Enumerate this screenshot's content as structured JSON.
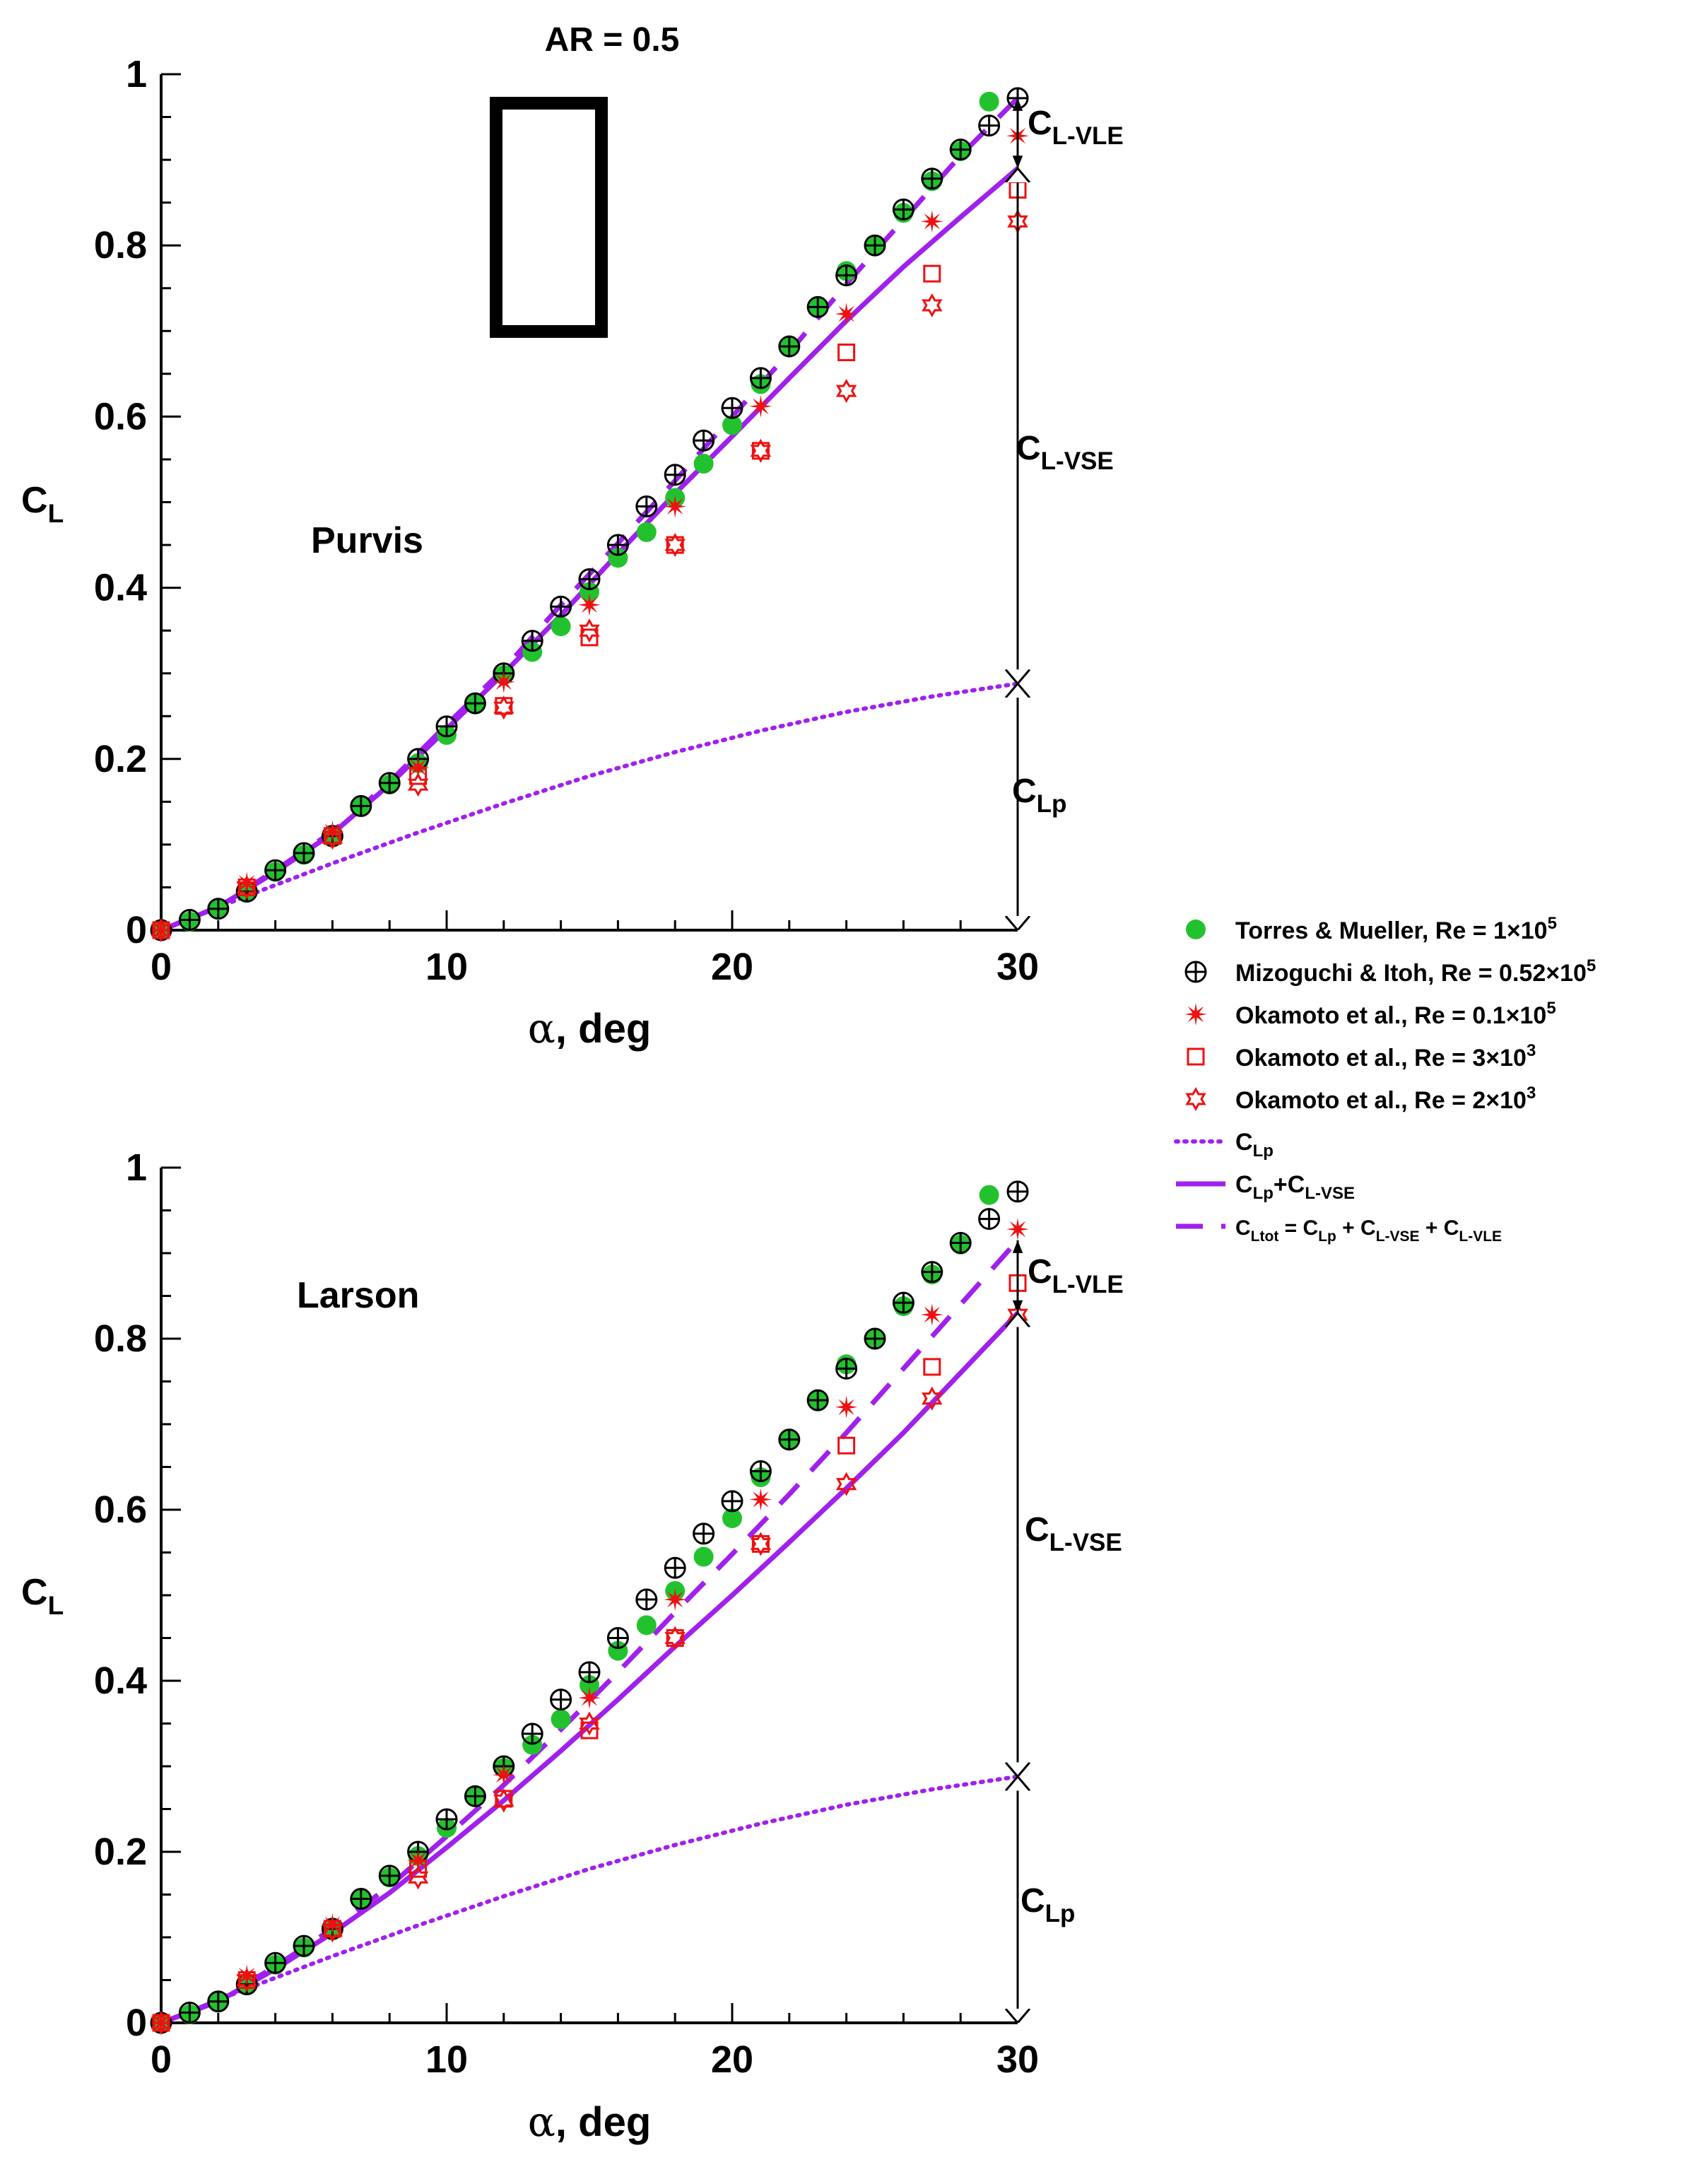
{
  "figure_title": "AR = 0.5",
  "colors": {
    "torres": "#22c22e",
    "okamoto": "#ee1111",
    "theory": "#a020ee",
    "axis": "#000000"
  },
  "legend": [
    {
      "key": "torres",
      "text": "Torres & Mueller, Re = 1×10",
      "sup": "5"
    },
    {
      "key": "mizo",
      "text": "Mizoguchi & Itoh, Re = 0.52×10",
      "sup": "5"
    },
    {
      "key": "oka1",
      "text": "Okamoto et al., Re = 0.1×10",
      "sup": "5"
    },
    {
      "key": "oka3",
      "text": "Okamoto et al., Re = 3×10",
      "sup": "3"
    },
    {
      "key": "oka2",
      "text": "Okamoto et al., Re = 2×10",
      "sup": "3"
    },
    {
      "key": "clp",
      "main": "C",
      "sub": "Lp"
    },
    {
      "key": "clpvse",
      "main": "C",
      "sub": "Lp",
      "mid": "+C",
      "sub2": "L-VSE"
    },
    {
      "key": "cltot",
      "main": "C",
      "sub": "Ltot",
      "rest": " = C",
      "sub2": "Lp",
      "rest2": " + C",
      "sub3": "L-VSE",
      "rest3": " + C",
      "sub4": "L-VLE"
    }
  ],
  "chart_data": [
    {
      "type": "scatter",
      "title": "Purvis",
      "xlabel": "α, deg",
      "ylabel": "C",
      "ylabel_sub": "L",
      "xlim": [
        0,
        30
      ],
      "ylim": [
        0,
        1
      ],
      "xticks": [
        0,
        10,
        20,
        30
      ],
      "yticks": [
        0,
        0.2,
        0.4,
        0.6,
        0.8,
        1
      ],
      "ytick_labels": [
        "0",
        "0.2",
        "0.4",
        "0.6",
        "0.8",
        "1"
      ],
      "series": [
        {
          "name": "Torres & Mueller, Re = 1×10^5",
          "key": "torres",
          "x": [
            0,
            1,
            2,
            3,
            4,
            5,
            6,
            7,
            8,
            9,
            10,
            11,
            12,
            13,
            14,
            15,
            16,
            17,
            18,
            19,
            20,
            21,
            22,
            23,
            24,
            25,
            26,
            27,
            28,
            29
          ],
          "y": [
            0,
            0.01,
            0.025,
            0.045,
            0.068,
            0.088,
            0.108,
            0.145,
            0.17,
            0.195,
            0.228,
            0.265,
            0.298,
            0.325,
            0.355,
            0.395,
            0.435,
            0.465,
            0.505,
            0.545,
            0.59,
            0.638,
            0.682,
            0.728,
            0.77,
            0.8,
            0.838,
            0.875,
            0.91,
            0.968
          ]
        },
        {
          "name": "Mizoguchi & Itoh, Re = 0.52×10^5",
          "key": "mizo",
          "x": [
            0,
            1,
            2,
            3,
            4,
            5,
            6,
            7,
            8,
            9,
            10,
            11,
            12,
            13,
            14,
            15,
            16,
            17,
            18,
            19,
            20,
            21,
            22,
            23,
            24,
            25,
            26,
            27,
            28,
            29,
            30
          ],
          "y": [
            0,
            0.012,
            0.025,
            0.045,
            0.07,
            0.09,
            0.11,
            0.145,
            0.172,
            0.2,
            0.238,
            0.265,
            0.3,
            0.338,
            0.378,
            0.41,
            0.45,
            0.495,
            0.532,
            0.572,
            0.61,
            0.645,
            0.682,
            0.728,
            0.765,
            0.8,
            0.842,
            0.878,
            0.912,
            0.94,
            0.972
          ]
        },
        {
          "name": "Okamoto et al., Re = 0.1×10^5",
          "key": "oka1",
          "x": [
            0,
            3,
            6,
            9,
            12,
            15,
            18,
            21,
            24,
            27,
            30
          ],
          "y": [
            0,
            0.055,
            0.115,
            0.19,
            0.29,
            0.38,
            0.495,
            0.612,
            0.72,
            0.828,
            0.928
          ]
        },
        {
          "name": "Okamoto et al., Re = 3×10^3",
          "key": "oka3",
          "x": [
            0,
            3,
            6,
            9,
            12,
            15,
            18,
            21,
            24,
            27,
            30
          ],
          "y": [
            0,
            0.05,
            0.11,
            0.18,
            0.262,
            0.342,
            0.45,
            0.56,
            0.675,
            0.767,
            0.865
          ]
        },
        {
          "name": "Okamoto et al., Re = 2×10^3",
          "key": "oka2",
          "x": [
            0,
            3,
            6,
            9,
            12,
            15,
            18,
            21,
            24,
            27,
            30
          ],
          "y": [
            0,
            0.05,
            0.108,
            0.17,
            0.26,
            0.35,
            0.45,
            0.56,
            0.63,
            0.73,
            0.828
          ]
        },
        {
          "name": "C_Lp",
          "key": "clp",
          "x": [
            0,
            3,
            6,
            9,
            12,
            15,
            18,
            21,
            24,
            27,
            30
          ],
          "y": [
            0,
            0.04,
            0.078,
            0.114,
            0.148,
            0.18,
            0.208,
            0.233,
            0.255,
            0.273,
            0.288
          ]
        },
        {
          "name": "C_Lp+C_L-VSE",
          "key": "clpvse",
          "x": [
            0,
            2,
            4,
            6,
            8,
            10,
            12,
            14,
            16,
            18,
            20,
            22,
            24,
            26,
            28,
            30
          ],
          "y": [
            0,
            0.027,
            0.068,
            0.113,
            0.17,
            0.235,
            0.3,
            0.368,
            0.44,
            0.51,
            0.577,
            0.645,
            0.712,
            0.775,
            0.833,
            0.89
          ]
        },
        {
          "name": "C_Ltot = C_Lp + C_L-VSE + C_L-VLE",
          "key": "cltot",
          "x": [
            0,
            2,
            4,
            6,
            8,
            10,
            12,
            14,
            16,
            18,
            20,
            22,
            24,
            26,
            28,
            30
          ],
          "y": [
            0,
            0.027,
            0.07,
            0.115,
            0.173,
            0.24,
            0.305,
            0.38,
            0.452,
            0.525,
            0.6,
            0.675,
            0.755,
            0.83,
            0.905,
            0.972
          ]
        }
      ],
      "annotations": [
        {
          "main": "C",
          "sub": "L-VLE"
        },
        {
          "main": "C",
          "sub": "L-VSE"
        },
        {
          "main": "C",
          "sub": "Lp"
        }
      ]
    },
    {
      "type": "scatter",
      "title": "Larson",
      "xlabel": "α, deg",
      "ylabel": "C",
      "ylabel_sub": "L",
      "xlim": [
        0,
        30
      ],
      "ylim": [
        0,
        1
      ],
      "xticks": [
        0,
        10,
        20,
        30
      ],
      "yticks": [
        0,
        0.2,
        0.4,
        0.6,
        0.8,
        1
      ],
      "ytick_labels": [
        "0",
        "0.2",
        "0.4",
        "0.6",
        "0.8",
        "1"
      ],
      "series": [
        {
          "name": "Torres & Mueller, Re = 1×10^5",
          "key": "torres",
          "x": [
            0,
            1,
            2,
            3,
            4,
            5,
            6,
            7,
            8,
            9,
            10,
            11,
            12,
            13,
            14,
            15,
            16,
            17,
            18,
            19,
            20,
            21,
            22,
            23,
            24,
            25,
            26,
            27,
            28,
            29
          ],
          "y": [
            0,
            0.01,
            0.025,
            0.045,
            0.068,
            0.088,
            0.108,
            0.145,
            0.17,
            0.195,
            0.228,
            0.265,
            0.298,
            0.325,
            0.355,
            0.395,
            0.435,
            0.465,
            0.505,
            0.545,
            0.59,
            0.638,
            0.682,
            0.728,
            0.77,
            0.8,
            0.838,
            0.875,
            0.91,
            0.968
          ]
        },
        {
          "name": "Mizoguchi & Itoh, Re = 0.52×10^5",
          "key": "mizo",
          "x": [
            0,
            1,
            2,
            3,
            4,
            5,
            6,
            7,
            8,
            9,
            10,
            11,
            12,
            13,
            14,
            15,
            16,
            17,
            18,
            19,
            20,
            21,
            22,
            23,
            24,
            25,
            26,
            27,
            28,
            29,
            30
          ],
          "y": [
            0,
            0.012,
            0.025,
            0.045,
            0.07,
            0.09,
            0.11,
            0.145,
            0.172,
            0.2,
            0.238,
            0.265,
            0.3,
            0.338,
            0.378,
            0.41,
            0.45,
            0.495,
            0.532,
            0.572,
            0.61,
            0.645,
            0.682,
            0.728,
            0.765,
            0.8,
            0.842,
            0.878,
            0.912,
            0.94,
            0.972
          ]
        },
        {
          "name": "Okamoto et al., Re = 0.1×10^5",
          "key": "oka1",
          "x": [
            0,
            3,
            6,
            9,
            12,
            15,
            18,
            21,
            24,
            27,
            30
          ],
          "y": [
            0,
            0.055,
            0.115,
            0.19,
            0.29,
            0.38,
            0.495,
            0.612,
            0.72,
            0.828,
            0.928
          ]
        },
        {
          "name": "Okamoto et al., Re = 3×10^3",
          "key": "oka3",
          "x": [
            0,
            3,
            6,
            9,
            12,
            15,
            18,
            21,
            24,
            27,
            30
          ],
          "y": [
            0,
            0.05,
            0.11,
            0.18,
            0.262,
            0.342,
            0.45,
            0.56,
            0.675,
            0.767,
            0.865
          ]
        },
        {
          "name": "Okamoto et al., Re = 2×10^3",
          "key": "oka2",
          "x": [
            0,
            3,
            6,
            9,
            12,
            15,
            18,
            21,
            24,
            27,
            30
          ],
          "y": [
            0,
            0.05,
            0.108,
            0.17,
            0.26,
            0.35,
            0.45,
            0.56,
            0.63,
            0.73,
            0.828
          ]
        },
        {
          "name": "C_Lp",
          "key": "clp",
          "x": [
            0,
            3,
            6,
            9,
            12,
            15,
            18,
            21,
            24,
            27,
            30
          ],
          "y": [
            0,
            0.04,
            0.078,
            0.114,
            0.148,
            0.18,
            0.208,
            0.233,
            0.255,
            0.273,
            0.288
          ]
        },
        {
          "name": "C_Lp+C_L-VSE",
          "key": "clpvse",
          "x": [
            0,
            2,
            4,
            6,
            8,
            10,
            12,
            14,
            16,
            18,
            20,
            22,
            24,
            26,
            28,
            30
          ],
          "y": [
            0,
            0.025,
            0.063,
            0.105,
            0.152,
            0.205,
            0.26,
            0.318,
            0.378,
            0.44,
            0.5,
            0.562,
            0.625,
            0.69,
            0.76,
            0.83
          ]
        },
        {
          "name": "C_Ltot = C_Lp + C_L-VSE + C_L-VLE",
          "key": "cltot",
          "x": [
            0,
            2,
            4,
            6,
            8,
            10,
            12,
            14,
            16,
            18,
            20,
            22,
            24,
            26,
            28,
            30
          ],
          "y": [
            0,
            0.026,
            0.066,
            0.11,
            0.16,
            0.218,
            0.278,
            0.343,
            0.41,
            0.48,
            0.548,
            0.618,
            0.69,
            0.765,
            0.84,
            0.915
          ]
        }
      ],
      "annotations": [
        {
          "main": "C",
          "sub": "L-VLE"
        },
        {
          "main": "C",
          "sub": "L-VSE"
        },
        {
          "main": "C",
          "sub": "Lp"
        }
      ]
    }
  ]
}
